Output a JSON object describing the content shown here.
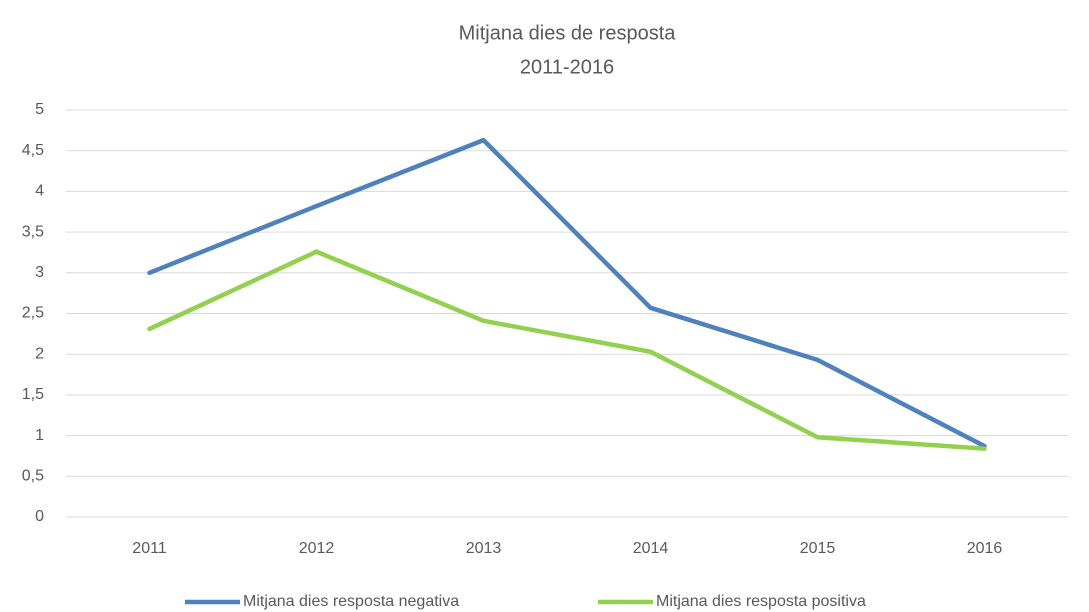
{
  "chart_data": {
    "type": "line",
    "title": "Mitjana dies de resposta",
    "subtitle": "2011-2016",
    "categories": [
      "2011",
      "2012",
      "2013",
      "2014",
      "2015",
      "2016"
    ],
    "series": [
      {
        "name": "Mitjana dies resposta negativa",
        "color": "#4f81bd",
        "values": [
          3.0,
          3.82,
          4.63,
          2.57,
          1.93,
          0.87
        ]
      },
      {
        "name": "Mitjana dies resposta positiva",
        "color": "#92d050",
        "values": [
          2.31,
          3.26,
          2.41,
          2.03,
          0.98,
          0.84
        ]
      }
    ],
    "ylim": [
      0,
      5
    ],
    "yticks": [
      0,
      {
        "value": 0.5,
        "label": "0,5"
      },
      1,
      {
        "value": 1.5,
        "label": "1,5"
      },
      2,
      {
        "value": 2.5,
        "label": "2,5"
      },
      3,
      {
        "value": 3.5,
        "label": "3,5"
      },
      4,
      {
        "value": 4.5,
        "label": "4,5"
      },
      5
    ],
    "grid": true,
    "legend": "bottom"
  }
}
